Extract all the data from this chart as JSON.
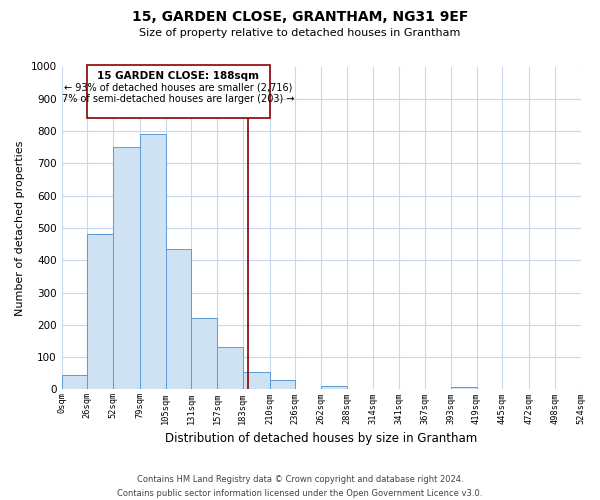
{
  "title": "15, GARDEN CLOSE, GRANTHAM, NG31 9EF",
  "subtitle": "Size of property relative to detached houses in Grantham",
  "xlabel": "Distribution of detached houses by size in Grantham",
  "ylabel": "Number of detached properties",
  "bar_edges": [
    0,
    26,
    52,
    79,
    105,
    131,
    157,
    183,
    210,
    236,
    262,
    288,
    314,
    341,
    367,
    393,
    419,
    445,
    472,
    498,
    524
  ],
  "bar_heights": [
    45,
    480,
    750,
    790,
    435,
    220,
    130,
    55,
    30,
    0,
    10,
    0,
    0,
    0,
    0,
    7,
    0,
    0,
    0,
    0
  ],
  "bar_color": "#cfe2f3",
  "bar_edge_color": "#5b9bd5",
  "property_size": 188,
  "vline_color": "#8b0000",
  "annotation_box_edge": "#8b0000",
  "annotation_title": "15 GARDEN CLOSE: 188sqm",
  "annotation_line1": "← 93% of detached houses are smaller (2,716)",
  "annotation_line2": "7% of semi-detached houses are larger (203) →",
  "ylim": [
    0,
    1000
  ],
  "yticks": [
    0,
    100,
    200,
    300,
    400,
    500,
    600,
    700,
    800,
    900,
    1000
  ],
  "xtick_labels": [
    "0sqm",
    "26sqm",
    "52sqm",
    "79sqm",
    "105sqm",
    "131sqm",
    "157sqm",
    "183sqm",
    "210sqm",
    "236sqm",
    "262sqm",
    "288sqm",
    "314sqm",
    "341sqm",
    "367sqm",
    "393sqm",
    "419sqm",
    "445sqm",
    "472sqm",
    "498sqm",
    "524sqm"
  ],
  "footer_line1": "Contains HM Land Registry data © Crown copyright and database right 2024.",
  "footer_line2": "Contains public sector information licensed under the Open Government Licence v3.0.",
  "background_color": "#ffffff",
  "grid_color": "#c8d8ec"
}
